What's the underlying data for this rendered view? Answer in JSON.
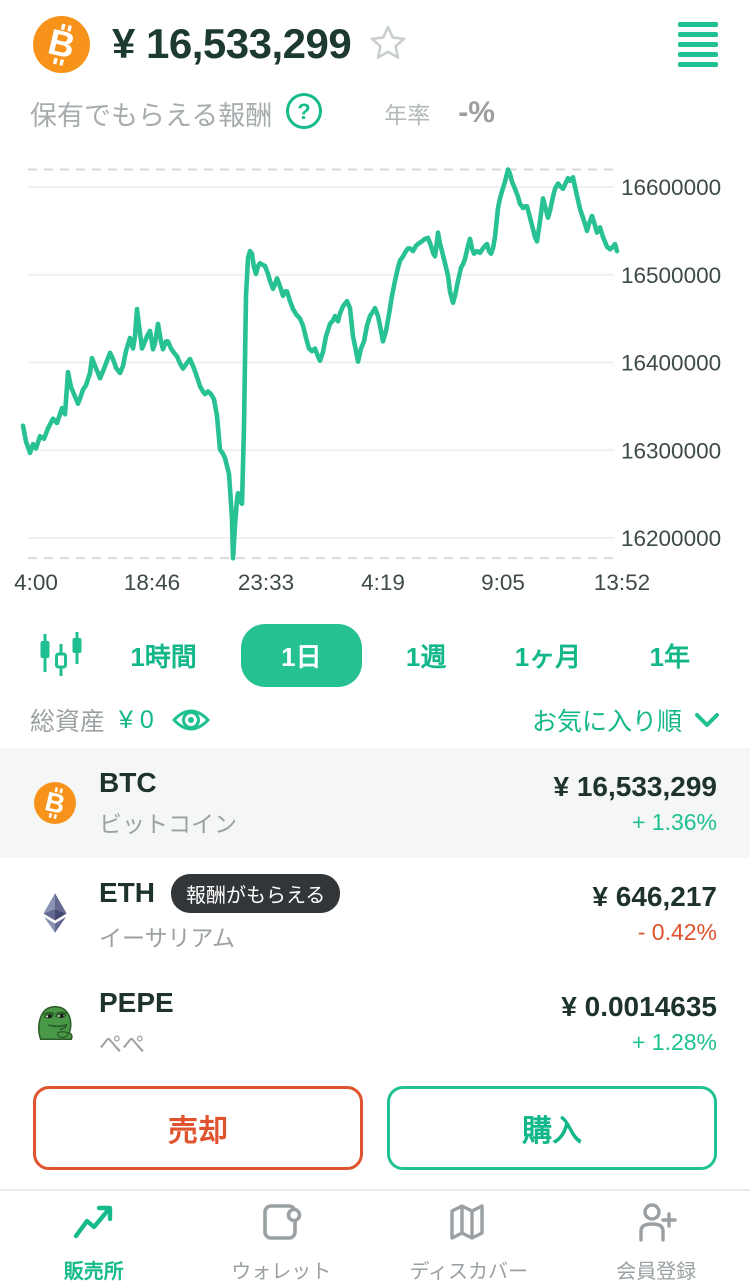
{
  "header": {
    "price": "¥ 16,533,299",
    "coin_icon": "bitcoin-logo",
    "favorite_icon": "star-outline",
    "menu_icon": "hamburger-menu"
  },
  "reward_row": {
    "label": "保有でもらえる報酬",
    "help_icon": "question-circle",
    "rate_label": "年率",
    "rate_value": "-%"
  },
  "chart_data": {
    "type": "line",
    "title": "BTC/JPY 1-day price chart",
    "xlabel": "",
    "ylabel": "",
    "legend": "none",
    "grid": "horizontal",
    "line_color": "#28c193",
    "y_ticks": [
      16600000,
      16500000,
      16400000,
      16300000,
      16200000
    ],
    "x_ticks": [
      "4:00",
      "18:46",
      "23:33",
      "4:19",
      "9:05",
      "13:52"
    ],
    "ylim": [
      16150000,
      16660000
    ],
    "max_value": 16620000,
    "min_value": 16177000,
    "price_scale": 1000,
    "points": [
      [
        23,
        16328
      ],
      [
        26,
        16310
      ],
      [
        30,
        16297
      ],
      [
        33,
        16307
      ],
      [
        36,
        16302
      ],
      [
        40,
        16316
      ],
      [
        44,
        16313
      ],
      [
        48,
        16325
      ],
      [
        53,
        16336
      ],
      [
        57,
        16331
      ],
      [
        62,
        16348
      ],
      [
        65,
        16341
      ],
      [
        68,
        16389
      ],
      [
        71,
        16372
      ],
      [
        74,
        16364
      ],
      [
        78,
        16353
      ],
      [
        80,
        16359
      ],
      [
        83,
        16369
      ],
      [
        86,
        16374
      ],
      [
        90,
        16388
      ],
      [
        92,
        16405
      ],
      [
        95,
        16396
      ],
      [
        98,
        16388
      ],
      [
        100,
        16382
      ],
      [
        103,
        16390
      ],
      [
        106,
        16399
      ],
      [
        110,
        16411
      ],
      [
        113,
        16404
      ],
      [
        116,
        16394
      ],
      [
        120,
        16388
      ],
      [
        123,
        16396
      ],
      [
        126,
        16413
      ],
      [
        130,
        16428
      ],
      [
        133,
        16416
      ],
      [
        135,
        16430
      ],
      [
        137,
        16461
      ],
      [
        139,
        16442
      ],
      [
        142,
        16416
      ],
      [
        145,
        16424
      ],
      [
        147,
        16430
      ],
      [
        150,
        16436
      ],
      [
        153,
        16415
      ],
      [
        155,
        16422
      ],
      [
        158,
        16444
      ],
      [
        161,
        16424
      ],
      [
        163,
        16415
      ],
      [
        166,
        16424
      ],
      [
        168,
        16424
      ],
      [
        171,
        16416
      ],
      [
        174,
        16411
      ],
      [
        177,
        16407
      ],
      [
        180,
        16399
      ],
      [
        183,
        16393
      ],
      [
        186,
        16398
      ],
      [
        190,
        16404
      ],
      [
        193,
        16396
      ],
      [
        196,
        16387
      ],
      [
        200,
        16373
      ],
      [
        203,
        16367
      ],
      [
        205,
        16364
      ],
      [
        208,
        16367
      ],
      [
        211,
        16364
      ],
      [
        214,
        16358
      ],
      [
        217,
        16339
      ],
      [
        220,
        16301
      ],
      [
        223,
        16296
      ],
      [
        225,
        16291
      ],
      [
        227,
        16282
      ],
      [
        229,
        16273
      ],
      [
        232,
        16222
      ],
      [
        233,
        16177
      ],
      [
        235,
        16214
      ],
      [
        237,
        16244
      ],
      [
        238,
        16251
      ],
      [
        240,
        16242
      ],
      [
        242,
        16239
      ],
      [
        244,
        16328
      ],
      [
        246,
        16476
      ],
      [
        248,
        16519
      ],
      [
        250,
        16527
      ],
      [
        252,
        16524
      ],
      [
        254,
        16508
      ],
      [
        256,
        16501
      ],
      [
        258,
        16510
      ],
      [
        260,
        16513
      ],
      [
        263,
        16511
      ],
      [
        265,
        16510
      ],
      [
        268,
        16501
      ],
      [
        270,
        16493
      ],
      [
        273,
        16484
      ],
      [
        275,
        16489
      ],
      [
        277,
        16496
      ],
      [
        280,
        16487
      ],
      [
        283,
        16476
      ],
      [
        285,
        16481
      ],
      [
        287,
        16481
      ],
      [
        290,
        16470
      ],
      [
        293,
        16461
      ],
      [
        296,
        16455
      ],
      [
        300,
        16450
      ],
      [
        303,
        16442
      ],
      [
        306,
        16428
      ],
      [
        309,
        16416
      ],
      [
        312,
        16413
      ],
      [
        315,
        16416
      ],
      [
        318,
        16407
      ],
      [
        320,
        16402
      ],
      [
        323,
        16412
      ],
      [
        326,
        16430
      ],
      [
        330,
        16444
      ],
      [
        333,
        16448
      ],
      [
        335,
        16453
      ],
      [
        338,
        16447
      ],
      [
        340,
        16456
      ],
      [
        343,
        16464
      ],
      [
        347,
        16470
      ],
      [
        350,
        16462
      ],
      [
        353,
        16430
      ],
      [
        356,
        16413
      ],
      [
        358,
        16401
      ],
      [
        361,
        16416
      ],
      [
        364,
        16424
      ],
      [
        367,
        16442
      ],
      [
        370,
        16453
      ],
      [
        373,
        16458
      ],
      [
        375,
        16462
      ],
      [
        378,
        16453
      ],
      [
        380,
        16442
      ],
      [
        383,
        16424
      ],
      [
        386,
        16436
      ],
      [
        389,
        16455
      ],
      [
        392,
        16476
      ],
      [
        395,
        16493
      ],
      [
        398,
        16508
      ],
      [
        400,
        16516
      ],
      [
        403,
        16521
      ],
      [
        406,
        16527
      ],
      [
        408,
        16530
      ],
      [
        410,
        16530
      ],
      [
        413,
        16527
      ],
      [
        416,
        16533
      ],
      [
        419,
        16536
      ],
      [
        422,
        16538
      ],
      [
        425,
        16541
      ],
      [
        428,
        16542
      ],
      [
        431,
        16533
      ],
      [
        433,
        16525
      ],
      [
        435,
        16521
      ],
      [
        437,
        16538
      ],
      [
        438,
        16548
      ],
      [
        440,
        16535
      ],
      [
        442,
        16527
      ],
      [
        445,
        16513
      ],
      [
        448,
        16499
      ],
      [
        450,
        16481
      ],
      [
        452,
        16472
      ],
      [
        453,
        16468
      ],
      [
        455,
        16476
      ],
      [
        458,
        16493
      ],
      [
        461,
        16508
      ],
      [
        463,
        16512
      ],
      [
        465,
        16518
      ],
      [
        468,
        16533
      ],
      [
        470,
        16541
      ],
      [
        472,
        16530
      ],
      [
        474,
        16524
      ],
      [
        477,
        16527
      ],
      [
        480,
        16525
      ],
      [
        483,
        16530
      ],
      [
        485,
        16533
      ],
      [
        487,
        16535
      ],
      [
        489,
        16527
      ],
      [
        491,
        16524
      ],
      [
        493,
        16530
      ],
      [
        495,
        16543
      ],
      [
        498,
        16576
      ],
      [
        500,
        16587
      ],
      [
        502,
        16595
      ],
      [
        505,
        16606
      ],
      [
        508,
        16620
      ],
      [
        510,
        16615
      ],
      [
        512,
        16606
      ],
      [
        515,
        16598
      ],
      [
        518,
        16589
      ],
      [
        520,
        16581
      ],
      [
        523,
        16576
      ],
      [
        525,
        16578
      ],
      [
        527,
        16578
      ],
      [
        530,
        16565
      ],
      [
        533,
        16552
      ],
      [
        535,
        16543
      ],
      [
        537,
        16538
      ],
      [
        540,
        16561
      ],
      [
        543,
        16587
      ],
      [
        545,
        16578
      ],
      [
        548,
        16565
      ],
      [
        550,
        16573
      ],
      [
        553,
        16589
      ],
      [
        555,
        16598
      ],
      [
        558,
        16604
      ],
      [
        560,
        16601
      ],
      [
        563,
        16598
      ],
      [
        565,
        16603
      ],
      [
        568,
        16610
      ],
      [
        570,
        16607
      ],
      [
        573,
        16611
      ],
      [
        576,
        16595
      ],
      [
        580,
        16575
      ],
      [
        583,
        16565
      ],
      [
        585,
        16558
      ],
      [
        587,
        16550
      ],
      [
        589,
        16558
      ],
      [
        592,
        16567
      ],
      [
        594,
        16560
      ],
      [
        597,
        16548
      ],
      [
        600,
        16554
      ],
      [
        603,
        16543
      ],
      [
        607,
        16532
      ],
      [
        610,
        16529
      ],
      [
        613,
        16532
      ],
      [
        615,
        16535
      ],
      [
        617,
        16527
      ]
    ]
  },
  "range_tabs": {
    "candle_icon": "candlestick-chart",
    "options": [
      {
        "label": "1時間",
        "selected": false
      },
      {
        "label": "1日",
        "selected": true
      },
      {
        "label": "1週",
        "selected": false
      },
      {
        "label": "1ヶ月",
        "selected": false
      },
      {
        "label": "1年",
        "selected": false
      }
    ]
  },
  "portfolio_bar": {
    "label": "総資産",
    "value": "¥ 0",
    "eye_icon": "eye",
    "sort_label": "お気に入り順",
    "chevron_icon": "chevron-down"
  },
  "assets": [
    {
      "symbol": "BTC",
      "name": "ビットコイン",
      "price": "¥ 16,533,299",
      "change": "+ 1.36%",
      "change_dir": "up",
      "badge": "",
      "icon": "bitcoin",
      "highlighted": true
    },
    {
      "symbol": "ETH",
      "name": "イーサリアム",
      "price": "¥ 646,217",
      "change": "- 0.42%",
      "change_dir": "down",
      "badge": "報酬がもらえる",
      "icon": "ethereum",
      "highlighted": false
    },
    {
      "symbol": "PEPE",
      "name": "ぺぺ",
      "price": "¥ 0.0014635",
      "change": "+ 1.28%",
      "change_dir": "up",
      "badge": "",
      "icon": "pepe",
      "highlighted": false
    }
  ],
  "actions": {
    "sell_label": "売却",
    "buy_label": "購入"
  },
  "bottom_nav": [
    {
      "label": "販売所",
      "icon": "trend-up-icon",
      "active": true
    },
    {
      "label": "ウォレット",
      "icon": "wallet-icon",
      "active": false
    },
    {
      "label": "ディスカバー",
      "icon": "map-icon",
      "active": false
    },
    {
      "label": "会員登録",
      "icon": "person-add-icon",
      "active": false
    }
  ],
  "colors": {
    "accent_green": "#1fc192",
    "text_green": "#14b789",
    "dark_text": "#1e3a33",
    "axis_text": "#3d4a46",
    "gray_text": "#a7acae",
    "red": "#e0532f",
    "row_highlight": "#f5f6f6",
    "badge_bg": "#333639",
    "bitcoin_orange": "#f7931a",
    "grid_line": "#eef1f1",
    "dashed_line": "#d6dada",
    "nav_gray": "#9aa0a3"
  }
}
